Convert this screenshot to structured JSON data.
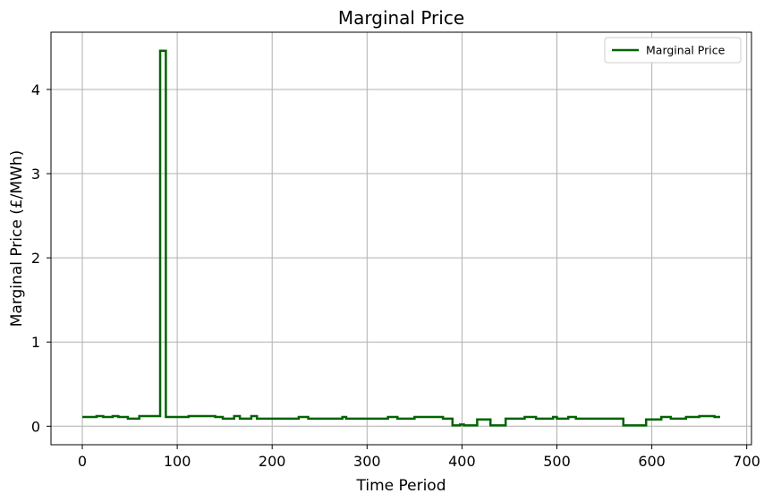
{
  "chart_data": {
    "type": "line",
    "title": "Marginal Price",
    "xlabel": "Time Period",
    "ylabel": "Marginal Price (£/MWh)",
    "xlim": [
      -33,
      705
    ],
    "ylim": [
      -0.22,
      4.68
    ],
    "xticks": [
      0,
      100,
      200,
      300,
      400,
      500,
      600,
      700
    ],
    "yticks": [
      0,
      1,
      2,
      3,
      4
    ],
    "grid": true,
    "legend_position": "top-right",
    "step": true,
    "series": [
      {
        "name": "Marginal Price",
        "color": "#006400",
        "points": [
          [
            0,
            0.11
          ],
          [
            15,
            0.11
          ],
          [
            15,
            0.12
          ],
          [
            22,
            0.12
          ],
          [
            22,
            0.11
          ],
          [
            32,
            0.11
          ],
          [
            32,
            0.12
          ],
          [
            38,
            0.12
          ],
          [
            38,
            0.11
          ],
          [
            48,
            0.11
          ],
          [
            48,
            0.09
          ],
          [
            60,
            0.09
          ],
          [
            60,
            0.12
          ],
          [
            82,
            0.12
          ],
          [
            82,
            4.46
          ],
          [
            88,
            4.46
          ],
          [
            88,
            0.11
          ],
          [
            112,
            0.11
          ],
          [
            112,
            0.12
          ],
          [
            140,
            0.12
          ],
          [
            140,
            0.11
          ],
          [
            148,
            0.11
          ],
          [
            148,
            0.09
          ],
          [
            160,
            0.09
          ],
          [
            160,
            0.12
          ],
          [
            166,
            0.12
          ],
          [
            166,
            0.09
          ],
          [
            178,
            0.09
          ],
          [
            178,
            0.12
          ],
          [
            184,
            0.12
          ],
          [
            184,
            0.09
          ],
          [
            228,
            0.09
          ],
          [
            228,
            0.11
          ],
          [
            238,
            0.11
          ],
          [
            238,
            0.09
          ],
          [
            274,
            0.09
          ],
          [
            274,
            0.11
          ],
          [
            278,
            0.11
          ],
          [
            278,
            0.09
          ],
          [
            322,
            0.09
          ],
          [
            322,
            0.11
          ],
          [
            332,
            0.11
          ],
          [
            332,
            0.09
          ],
          [
            350,
            0.09
          ],
          [
            350,
            0.11
          ],
          [
            380,
            0.11
          ],
          [
            380,
            0.09
          ],
          [
            390,
            0.09
          ],
          [
            390,
            0.01
          ],
          [
            398,
            0.01
          ],
          [
            398,
            0.02
          ],
          [
            402,
            0.02
          ],
          [
            402,
            0.01
          ],
          [
            416,
            0.01
          ],
          [
            416,
            0.08
          ],
          [
            430,
            0.08
          ],
          [
            430,
            0.01
          ],
          [
            446,
            0.01
          ],
          [
            446,
            0.09
          ],
          [
            466,
            0.09
          ],
          [
            466,
            0.11
          ],
          [
            478,
            0.11
          ],
          [
            478,
            0.09
          ],
          [
            496,
            0.09
          ],
          [
            496,
            0.11
          ],
          [
            500,
            0.11
          ],
          [
            500,
            0.09
          ],
          [
            512,
            0.09
          ],
          [
            512,
            0.11
          ],
          [
            520,
            0.11
          ],
          [
            520,
            0.09
          ],
          [
            570,
            0.09
          ],
          [
            570,
            0.01
          ],
          [
            594,
            0.01
          ],
          [
            594,
            0.08
          ],
          [
            610,
            0.08
          ],
          [
            610,
            0.11
          ],
          [
            620,
            0.11
          ],
          [
            620,
            0.09
          ],
          [
            636,
            0.09
          ],
          [
            636,
            0.11
          ],
          [
            650,
            0.11
          ],
          [
            650,
            0.12
          ],
          [
            666,
            0.12
          ],
          [
            666,
            0.11
          ],
          [
            672,
            0.11
          ]
        ]
      }
    ]
  }
}
